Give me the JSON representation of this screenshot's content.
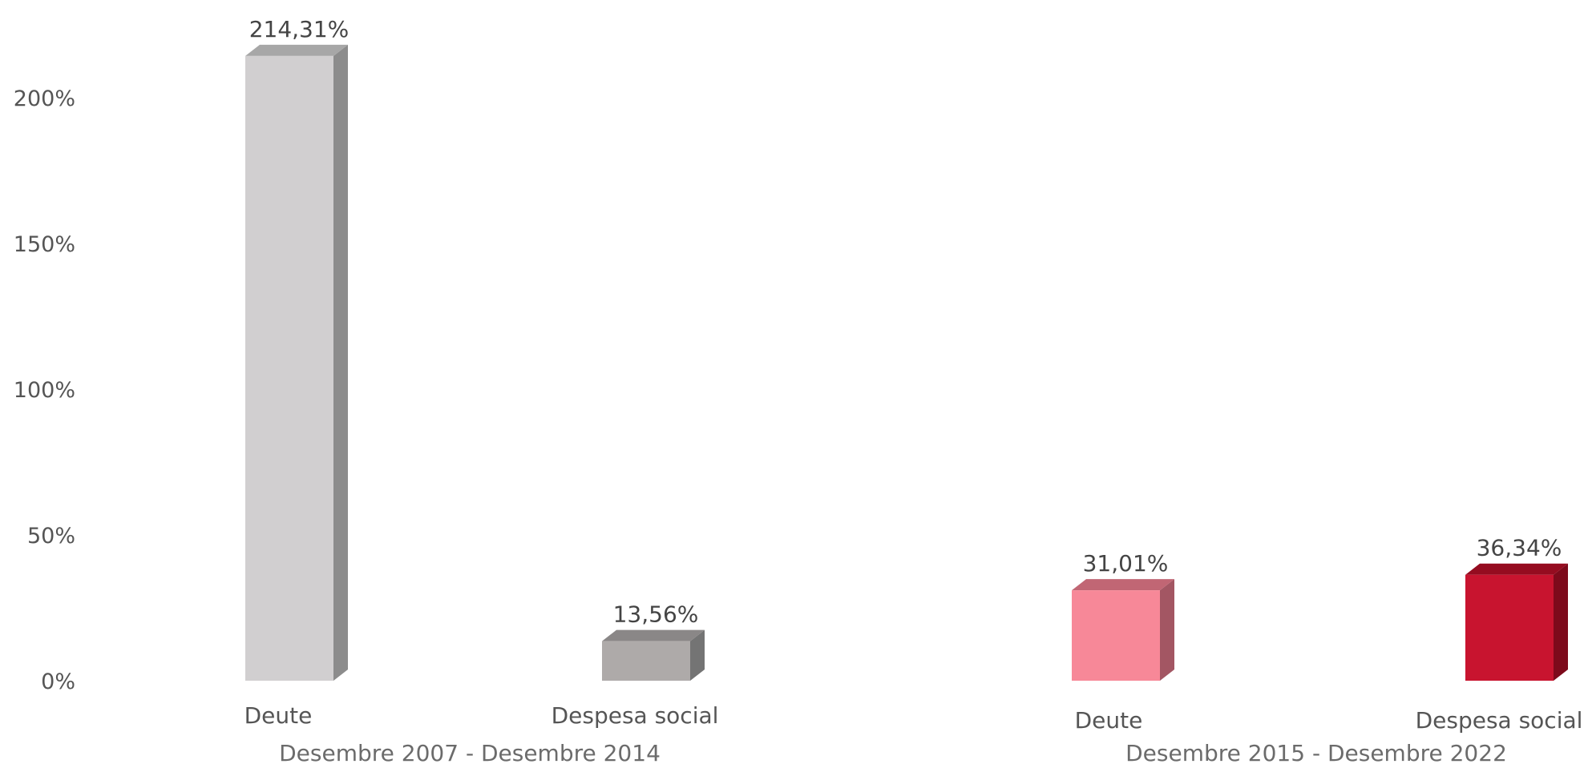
{
  "chart_data": {
    "type": "bar",
    "title": "",
    "xlabel": "",
    "ylabel": "",
    "ylim": [
      0,
      220
    ],
    "yticks": [
      0,
      50,
      100,
      150,
      200
    ],
    "ytick_labels": [
      "0%",
      "50%",
      "100%",
      "150%",
      "200%"
    ],
    "grid": false,
    "legend": "none",
    "groups": [
      {
        "label": "Desembre 2007 - Desembre 2014",
        "bars": [
          {
            "category": "Deute",
            "value": 214.31,
            "label": "214,31%",
            "color": "#d1cfd0",
            "side": "#8c8c8c",
            "top": "#a7a7a7"
          },
          {
            "category": "Despesa social",
            "value": 13.56,
            "label": "13,56%",
            "color": "#aeaaa9",
            "side": "#747474",
            "top": "#8a8787"
          }
        ]
      },
      {
        "label": "Desembre 2015 - Desembre 2022",
        "bars": [
          {
            "category": "Deute",
            "value": 31.01,
            "label": "31,01%",
            "color": "#f78898",
            "side": "#a35663",
            "top": "#c16674"
          },
          {
            "category": "Despesa social",
            "value": 36.34,
            "label": "36,34%",
            "color": "#c8142f",
            "side": "#7d0a1b",
            "top": "#950c20"
          }
        ]
      }
    ]
  }
}
